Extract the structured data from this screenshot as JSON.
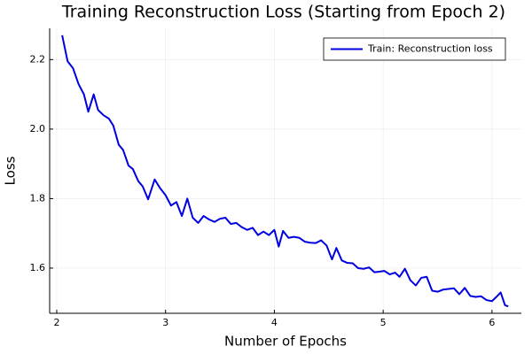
{
  "chart_data": {
    "type": "line",
    "title": "Training Reconstruction Loss (Starting from Epoch 2)",
    "x_label": "Number of Epochs",
    "y_label": "Loss",
    "xlim": [
      1.935,
      6.27
    ],
    "ylim": [
      1.47,
      2.29
    ],
    "xticks": [
      2,
      3,
      4,
      5,
      6
    ],
    "yticks": [
      1.6,
      1.8,
      {
        "value": 2.0,
        "label": "2.0"
      },
      2.2
    ],
    "grid": true,
    "legend": "top-right",
    "x": [
      2.05,
      2.1,
      2.15,
      2.2,
      2.25,
      2.29,
      2.34,
      2.38,
      2.43,
      2.48,
      2.52,
      2.57,
      2.61,
      2.66,
      2.7,
      2.75,
      2.79,
      2.84,
      2.9,
      2.95,
      3.0,
      3.05,
      3.1,
      3.15,
      3.2,
      3.25,
      3.3,
      3.35,
      3.4,
      3.45,
      3.5,
      3.55,
      3.6,
      3.65,
      3.7,
      3.75,
      3.8,
      3.85,
      3.9,
      3.95,
      4.0,
      4.04,
      4.08,
      4.13,
      4.18,
      4.23,
      4.28,
      4.33,
      4.38,
      4.43,
      4.48,
      4.53,
      4.57,
      4.62,
      4.67,
      4.72,
      4.77,
      4.82,
      4.87,
      4.92,
      4.97,
      5.01,
      5.06,
      5.11,
      5.15,
      5.2,
      5.25,
      5.3,
      5.35,
      5.4,
      5.45,
      5.5,
      5.55,
      5.6,
      5.65,
      5.7,
      5.75,
      5.8,
      5.85,
      5.9,
      5.95,
      6.0,
      6.05,
      6.08,
      6.12,
      6.15
    ],
    "series": [
      {
        "name": "Train: Reconstruction loss",
        "color": "#0000e0",
        "values": [
          2.27,
          2.195,
          2.175,
          2.13,
          2.1,
          2.05,
          2.1,
          2.055,
          2.04,
          2.03,
          2.01,
          1.955,
          1.94,
          1.895,
          1.885,
          1.85,
          1.835,
          1.798,
          1.855,
          1.83,
          1.81,
          1.78,
          1.79,
          1.75,
          1.8,
          1.745,
          1.73,
          1.75,
          1.74,
          1.733,
          1.742,
          1.745,
          1.727,
          1.73,
          1.718,
          1.71,
          1.716,
          1.695,
          1.705,
          1.695,
          1.71,
          1.662,
          1.707,
          1.687,
          1.69,
          1.687,
          1.676,
          1.673,
          1.672,
          1.68,
          1.665,
          1.625,
          1.658,
          1.622,
          1.615,
          1.614,
          1.6,
          1.598,
          1.602,
          1.588,
          1.59,
          1.592,
          1.582,
          1.587,
          1.575,
          1.598,
          1.565,
          1.55,
          1.572,
          1.575,
          1.535,
          1.532,
          1.538,
          1.54,
          1.542,
          1.525,
          1.543,
          1.52,
          1.517,
          1.519,
          1.508,
          1.505,
          1.52,
          1.53,
          1.493,
          1.49
        ]
      }
    ]
  }
}
